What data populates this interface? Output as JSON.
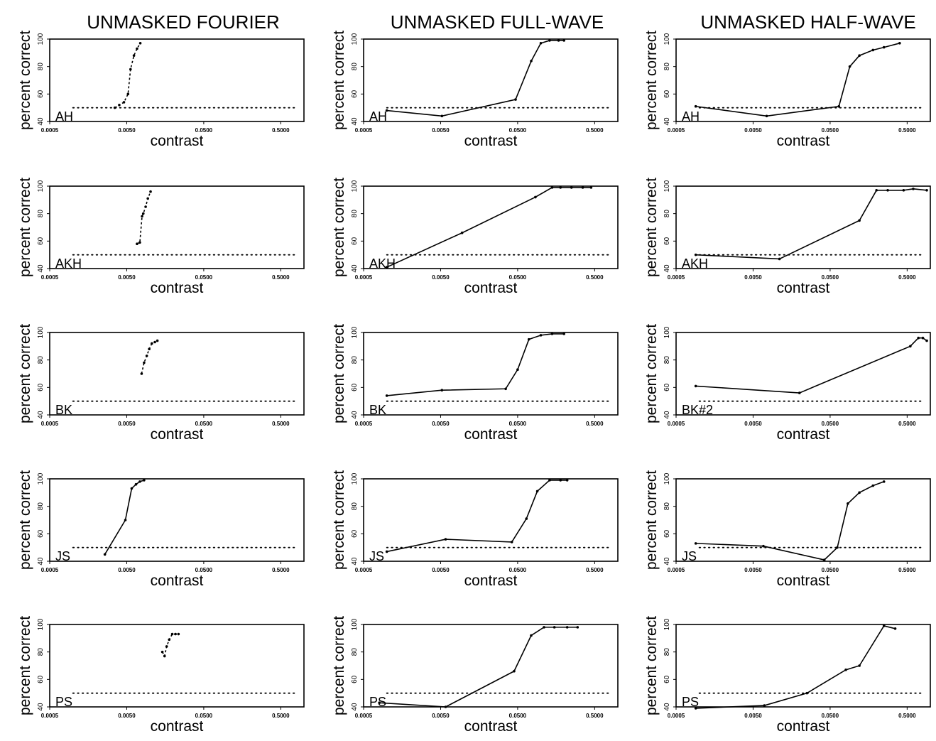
{
  "column_titles": [
    "UNMASKED FOURIER",
    "UNMASKED FULL-WAVE",
    "UNMASKED HALF-WAVE"
  ],
  "chart_data": [
    {
      "type": "line",
      "column": "UNMASKED FOURIER",
      "subject": "AH",
      "xlabel": "contrast",
      "ylabel": "percent correct",
      "xscale": "log",
      "xlim": [
        0.0005,
        1.0
      ],
      "ylim": [
        40,
        100
      ],
      "xticks": [
        "0.0005",
        "0.0050",
        "0.0500",
        "0.5000"
      ],
      "yticks": [
        "40",
        "60",
        "80",
        "100"
      ],
      "chance": 50,
      "connected": false,
      "x": [
        0.0035,
        0.004,
        0.0046,
        0.0052,
        0.0056,
        0.0062,
        0.0068,
        0.0075
      ],
      "y": [
        50,
        52,
        54,
        60,
        78,
        88,
        93,
        97
      ]
    },
    {
      "type": "line",
      "column": "UNMASKED FULL-WAVE",
      "subject": "AH",
      "xlabel": "contrast",
      "ylabel": "percent correct",
      "xscale": "log",
      "xlim": [
        0.0005,
        1.0
      ],
      "ylim": [
        40,
        100
      ],
      "xticks": [
        "0.0005",
        "0.0050",
        "0.0500",
        "0.5000"
      ],
      "yticks": [
        "40",
        "60",
        "80",
        "100"
      ],
      "chance": 50,
      "connected": true,
      "x": [
        0.001,
        0.0052,
        0.047,
        0.075,
        0.1,
        0.13,
        0.17,
        0.2
      ],
      "y": [
        48,
        44,
        56,
        84,
        97,
        99,
        99,
        99
      ]
    },
    {
      "type": "line",
      "column": "UNMASKED HALF-WAVE",
      "subject": "AH",
      "xlabel": "contrast",
      "ylabel": "percent correct",
      "xscale": "log",
      "xlim": [
        0.0005,
        1.0
      ],
      "ylim": [
        40,
        100
      ],
      "xticks": [
        "0.0005",
        "0.0050",
        "0.0500",
        "0.5000"
      ],
      "yticks": [
        "40",
        "60",
        "80",
        "100"
      ],
      "chance": 50,
      "connected": true,
      "x": [
        0.0009,
        0.0075,
        0.065,
        0.09,
        0.12,
        0.18,
        0.25,
        0.4
      ],
      "y": [
        51,
        44,
        51,
        80,
        88,
        92,
        94,
        97
      ]
    },
    {
      "type": "line",
      "column": "UNMASKED FOURIER",
      "subject": "AKH",
      "xlabel": "contrast",
      "ylabel": "percent correct",
      "xscale": "log",
      "xlim": [
        0.0005,
        1.0
      ],
      "ylim": [
        40,
        100
      ],
      "xticks": [
        "0.0005",
        "0.0050",
        "0.0500",
        "0.5000"
      ],
      "yticks": [
        "40",
        "60",
        "80",
        "100"
      ],
      "chance": 50,
      "connected": false,
      "x": [
        0.0068,
        0.0074,
        0.0079,
        0.0082,
        0.0088,
        0.0094,
        0.0102
      ],
      "y": [
        58,
        59,
        78,
        80,
        85,
        91,
        96
      ]
    },
    {
      "type": "line",
      "column": "UNMASKED FULL-WAVE",
      "subject": "AKH",
      "xlabel": "contrast",
      "ylabel": "percent correct",
      "xscale": "log",
      "xlim": [
        0.0005,
        1.0
      ],
      "ylim": [
        40,
        100
      ],
      "xticks": [
        "0.0005",
        "0.0050",
        "0.0500",
        "0.5000"
      ],
      "yticks": [
        "40",
        "60",
        "80",
        "100"
      ],
      "chance": 50,
      "connected": true,
      "x": [
        0.001,
        0.0095,
        0.085,
        0.14,
        0.18,
        0.25,
        0.35,
        0.45
      ],
      "y": [
        41,
        66,
        92,
        99,
        99,
        99,
        99,
        99
      ]
    },
    {
      "type": "line",
      "column": "UNMASKED HALF-WAVE",
      "subject": "AKH",
      "xlabel": "contrast",
      "ylabel": "percent correct",
      "xscale": "log",
      "xlim": [
        0.0005,
        1.0
      ],
      "ylim": [
        40,
        100
      ],
      "xticks": [
        "0.0005",
        "0.0050",
        "0.0500",
        "0.5000"
      ],
      "yticks": [
        "40",
        "60",
        "80",
        "100"
      ],
      "chance": 50,
      "connected": true,
      "x": [
        0.0009,
        0.011,
        0.12,
        0.2,
        0.28,
        0.45,
        0.6,
        0.9
      ],
      "y": [
        50,
        47,
        75,
        97,
        97,
        97,
        98,
        97
      ]
    },
    {
      "type": "line",
      "column": "UNMASKED FOURIER",
      "subject": "BK",
      "xlabel": "contrast",
      "ylabel": "percent correct",
      "xscale": "log",
      "xlim": [
        0.0005,
        1.0
      ],
      "ylim": [
        40,
        100
      ],
      "xticks": [
        "0.0005",
        "0.0050",
        "0.0500",
        "0.5000"
      ],
      "yticks": [
        "40",
        "60",
        "80",
        "100"
      ],
      "chance": 50,
      "connected": false,
      "x": [
        0.0078,
        0.0084,
        0.0091,
        0.0098,
        0.0106,
        0.0116,
        0.0125
      ],
      "y": [
        70,
        78,
        83,
        88,
        92,
        93,
        94
      ]
    },
    {
      "type": "line",
      "column": "UNMASKED FULL-WAVE",
      "subject": "BK",
      "xlabel": "contrast",
      "ylabel": "percent correct",
      "xscale": "log",
      "xlim": [
        0.0005,
        1.0
      ],
      "ylim": [
        40,
        100
      ],
      "xticks": [
        "0.0005",
        "0.0050",
        "0.0500",
        "0.5000"
      ],
      "yticks": [
        "40",
        "60",
        "80",
        "100"
      ],
      "chance": 50,
      "connected": true,
      "x": [
        0.001,
        0.0052,
        0.035,
        0.05,
        0.07,
        0.1,
        0.14,
        0.2
      ],
      "y": [
        54,
        58,
        59,
        73,
        95,
        98,
        99,
        99
      ]
    },
    {
      "type": "line",
      "column": "UNMASKED HALF-WAVE",
      "subject": "BK#2",
      "xlabel": "contrast",
      "ylabel": "percent correct",
      "xscale": "log",
      "xlim": [
        0.0005,
        1.0
      ],
      "ylim": [
        40,
        100
      ],
      "xticks": [
        "0.0005",
        "0.0050",
        "0.0500",
        "0.5000"
      ],
      "yticks": [
        "40",
        "60",
        "80",
        "100"
      ],
      "chance": 50,
      "connected": true,
      "x": [
        0.0009,
        0.02,
        0.55,
        0.7,
        0.8,
        0.9
      ],
      "y": [
        61,
        56,
        90,
        96,
        96,
        94
      ]
    },
    {
      "type": "line",
      "column": "UNMASKED FOURIER",
      "subject": "JS",
      "xlabel": "contrast",
      "ylabel": "percent correct",
      "xscale": "log",
      "xlim": [
        0.0005,
        1.0
      ],
      "ylim": [
        40,
        100
      ],
      "xticks": [
        "0.0005",
        "0.0050",
        "0.0500",
        "0.5000"
      ],
      "yticks": [
        "40",
        "60",
        "80",
        "100"
      ],
      "chance": 50,
      "connected": true,
      "x": [
        0.0026,
        0.0048,
        0.0058,
        0.0066,
        0.0074,
        0.0084
      ],
      "y": [
        45,
        70,
        93,
        96,
        98,
        99
      ]
    },
    {
      "type": "line",
      "column": "UNMASKED FULL-WAVE",
      "subject": "JS",
      "xlabel": "contrast",
      "ylabel": "percent correct",
      "xscale": "log",
      "xlim": [
        0.0005,
        1.0
      ],
      "ylim": [
        40,
        100
      ],
      "xticks": [
        "0.0005",
        "0.0050",
        "0.0500",
        "0.5000"
      ],
      "yticks": [
        "40",
        "60",
        "80",
        "100"
      ],
      "chance": 50,
      "connected": true,
      "x": [
        0.001,
        0.0058,
        0.042,
        0.065,
        0.09,
        0.13,
        0.18,
        0.22
      ],
      "y": [
        47,
        56,
        54,
        71,
        91,
        99,
        99,
        99
      ]
    },
    {
      "type": "line",
      "column": "UNMASKED HALF-WAVE",
      "subject": "JS",
      "xlabel": "contrast",
      "ylabel": "percent correct",
      "xscale": "log",
      "xlim": [
        0.0005,
        1.0
      ],
      "ylim": [
        40,
        100
      ],
      "xticks": [
        "0.0005",
        "0.0050",
        "0.0500",
        "0.5000"
      ],
      "yticks": [
        "40",
        "60",
        "80",
        "100"
      ],
      "chance": 50,
      "connected": true,
      "x": [
        0.0009,
        0.0068,
        0.042,
        0.062,
        0.085,
        0.12,
        0.18,
        0.25
      ],
      "y": [
        53,
        51,
        41,
        50,
        82,
        90,
        95,
        98
      ]
    },
    {
      "type": "line",
      "column": "UNMASKED FOURIER",
      "subject": "PS",
      "xlabel": "contrast",
      "ylabel": "percent correct",
      "xscale": "log",
      "xlim": [
        0.0005,
        1.0
      ],
      "ylim": [
        40,
        100
      ],
      "xticks": [
        "0.0005",
        "0.0050",
        "0.0500",
        "0.5000"
      ],
      "yticks": [
        "40",
        "60",
        "80",
        "100"
      ],
      "chance": 50,
      "connected": false,
      "x": [
        0.0145,
        0.0155,
        0.0165,
        0.0178,
        0.0195,
        0.0215,
        0.0235
      ],
      "y": [
        80,
        77,
        84,
        89,
        93,
        93,
        93
      ]
    },
    {
      "type": "line",
      "column": "UNMASKED FULL-WAVE",
      "subject": "PS",
      "xlabel": "contrast",
      "ylabel": "percent correct",
      "xscale": "log",
      "xlim": [
        0.0005,
        1.0
      ],
      "ylim": [
        40,
        100
      ],
      "xticks": [
        "0.0005",
        "0.0050",
        "0.0500",
        "0.5000"
      ],
      "yticks": [
        "40",
        "60",
        "80",
        "100"
      ],
      "chance": 50,
      "connected": true,
      "x": [
        0.0008,
        0.0058,
        0.045,
        0.075,
        0.11,
        0.15,
        0.22,
        0.3
      ],
      "y": [
        43,
        40,
        66,
        92,
        98,
        98,
        98,
        98
      ]
    },
    {
      "type": "line",
      "column": "UNMASKED HALF-WAVE",
      "subject": "PS",
      "xlabel": "contrast",
      "ylabel": "percent correct",
      "xscale": "log",
      "xlim": [
        0.0005,
        1.0
      ],
      "ylim": [
        40,
        100
      ],
      "xticks": [
        "0.0005",
        "0.0050",
        "0.0500",
        "0.5000"
      ],
      "yticks": [
        "40",
        "60",
        "80",
        "100"
      ],
      "chance": 50,
      "connected": true,
      "x": [
        0.0009,
        0.007,
        0.025,
        0.08,
        0.12,
        0.25,
        0.35
      ],
      "y": [
        39,
        41,
        50,
        67,
        70,
        99,
        97
      ]
    }
  ]
}
